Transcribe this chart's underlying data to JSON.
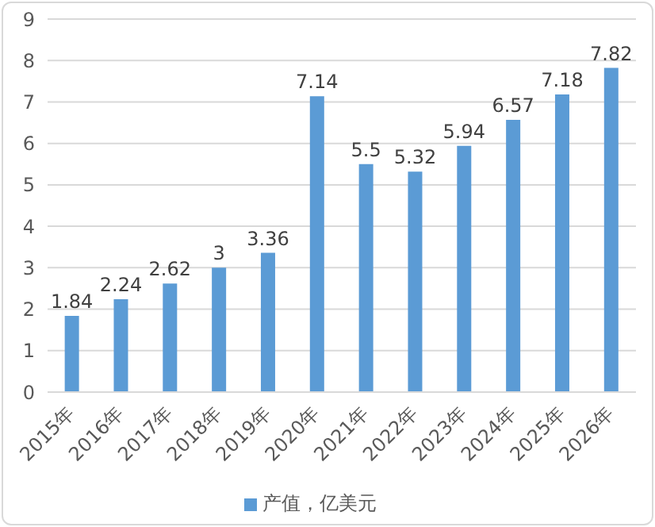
{
  "chart_data": {
    "type": "bar",
    "categories": [
      "2015年",
      "2016年",
      "2017年",
      "2018年",
      "2019年",
      "2020年",
      "2021年",
      "2022年",
      "2023年",
      "2024年",
      "2025年",
      "2026年"
    ],
    "series": [
      {
        "name": "产值，亿美元",
        "color": "#5b9bd5",
        "values": [
          1.84,
          2.24,
          2.62,
          3,
          3.36,
          7.14,
          5.5,
          5.32,
          5.94,
          6.57,
          7.18,
          7.82
        ]
      }
    ],
    "ylim": [
      0,
      9
    ],
    "yticks": [
      0,
      1,
      2,
      3,
      4,
      5,
      6,
      7,
      8,
      9
    ],
    "grid": "y",
    "legend": "bottom",
    "data_labels": true
  }
}
